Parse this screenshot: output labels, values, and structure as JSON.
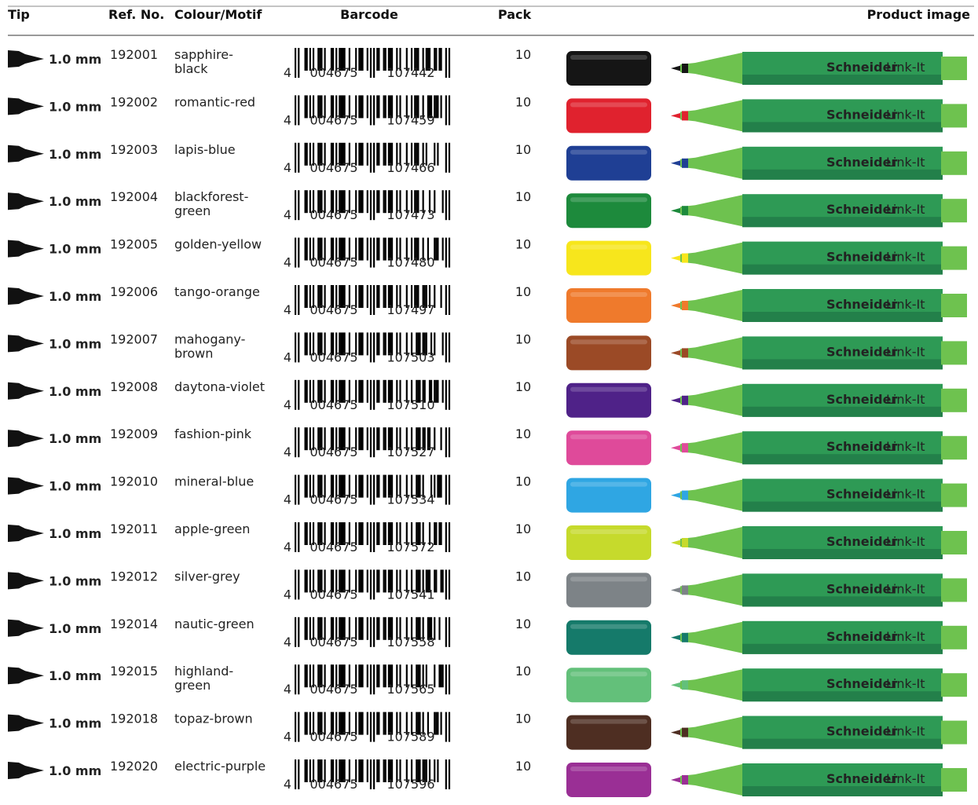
{
  "header": {
    "tip": "Tip",
    "ref_no": "Ref. No.",
    "colour": "Colour/Motif",
    "barcode": "Barcode",
    "pack": "Pack",
    "product_image": "Product image"
  },
  "brand": "Schneider",
  "product_line": "Link-It",
  "rows": [
    {
      "tip": "1.0 mm",
      "ref": "192001",
      "colour": [
        "sapphire-",
        "black"
      ],
      "barcode": [
        "4",
        "004675",
        "107442"
      ],
      "pack": "10",
      "cap_color": "#151515"
    },
    {
      "tip": "1.0 mm",
      "ref": "192002",
      "colour": [
        "romantic-red"
      ],
      "barcode": [
        "4",
        "004675",
        "107459"
      ],
      "pack": "10",
      "cap_color": "#e0222e"
    },
    {
      "tip": "1.0 mm",
      "ref": "192003",
      "colour": [
        "lapis-blue"
      ],
      "barcode": [
        "4",
        "004675",
        "107466"
      ],
      "pack": "10",
      "cap_color": "#1f3f94"
    },
    {
      "tip": "1.0 mm",
      "ref": "192004",
      "colour": [
        "blackforest-",
        "green"
      ],
      "barcode": [
        "4",
        "004675",
        "107473"
      ],
      "pack": "10",
      "cap_color": "#1d8a3c"
    },
    {
      "tip": "1.0 mm",
      "ref": "192005",
      "colour": [
        "golden-yellow"
      ],
      "barcode": [
        "4",
        "004675",
        "107480"
      ],
      "pack": "10",
      "cap_color": "#f7e61c"
    },
    {
      "tip": "1.0 mm",
      "ref": "192006",
      "colour": [
        "tango-orange"
      ],
      "barcode": [
        "4",
        "004675",
        "107497"
      ],
      "pack": "10",
      "cap_color": "#ef7a2c"
    },
    {
      "tip": "1.0 mm",
      "ref": "192007",
      "colour": [
        "mahogany-",
        "brown"
      ],
      "barcode": [
        "4",
        "004675",
        "107503"
      ],
      "pack": "10",
      "cap_color": "#9b4a26"
    },
    {
      "tip": "1.0 mm",
      "ref": "192008",
      "colour": [
        "daytona-violet"
      ],
      "barcode": [
        "4",
        "004675",
        "107510"
      ],
      "pack": "10",
      "cap_color": "#4f2288"
    },
    {
      "tip": "1.0 mm",
      "ref": "192009",
      "colour": [
        "fashion-pink"
      ],
      "barcode": [
        "4",
        "004675",
        "107527"
      ],
      "pack": "10",
      "cap_color": "#df4a9a"
    },
    {
      "tip": "1.0 mm",
      "ref": "192010",
      "colour": [
        "mineral-blue"
      ],
      "barcode": [
        "4",
        "004675",
        "107534"
      ],
      "pack": "10",
      "cap_color": "#2fa6e3"
    },
    {
      "tip": "1.0 mm",
      "ref": "192011",
      "colour": [
        "apple-green"
      ],
      "barcode": [
        "4",
        "004675",
        "107572"
      ],
      "pack": "10",
      "cap_color": "#c6da2c"
    },
    {
      "tip": "1.0 mm",
      "ref": "192012",
      "colour": [
        "silver-grey"
      ],
      "barcode": [
        "4",
        "004675",
        "107541"
      ],
      "pack": "10",
      "cap_color": "#7d8387"
    },
    {
      "tip": "1.0 mm",
      "ref": "192014",
      "colour": [
        "nautic-green"
      ],
      "barcode": [
        "4",
        "004675",
        "107558"
      ],
      "pack": "10",
      "cap_color": "#157a6a"
    },
    {
      "tip": "1.0 mm",
      "ref": "192015",
      "colour": [
        "highland-",
        "green"
      ],
      "barcode": [
        "4",
        "004675",
        "107565"
      ],
      "pack": "10",
      "cap_color": "#63c07a"
    },
    {
      "tip": "1.0 mm",
      "ref": "192018",
      "colour": [
        "topaz-brown"
      ],
      "barcode": [
        "4",
        "004675",
        "107589"
      ],
      "pack": "10",
      "cap_color": "#4e2e22"
    },
    {
      "tip": "1.0 mm",
      "ref": "192020",
      "colour": [
        "electric-purple"
      ],
      "barcode": [
        "4",
        "004675",
        "107596"
      ],
      "pack": "10",
      "cap_color": "#9a2f95"
    }
  ]
}
